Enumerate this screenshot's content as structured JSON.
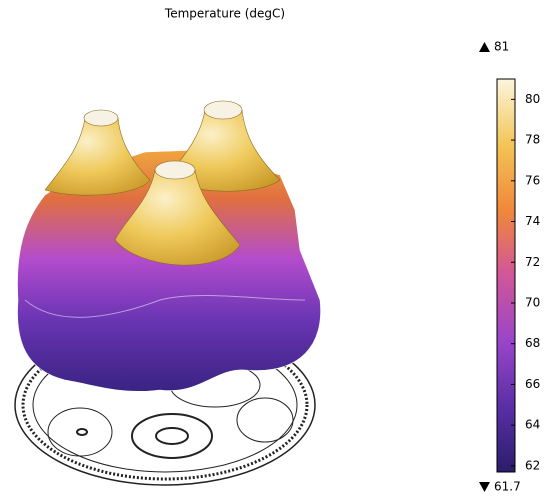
{
  "chart_data": {
    "type": "surface",
    "title": "Temperature (degC)",
    "clim": [
      61.7,
      81
    ],
    "cticks": [
      62,
      64,
      66,
      68,
      70,
      72,
      74,
      76,
      78,
      80
    ],
    "colormap": [
      "#2b1d6b",
      "#5a2fa6",
      "#9a45c9",
      "#d0569a",
      "#f0883a",
      "#f3c557",
      "#fcf6dc"
    ]
  }
}
